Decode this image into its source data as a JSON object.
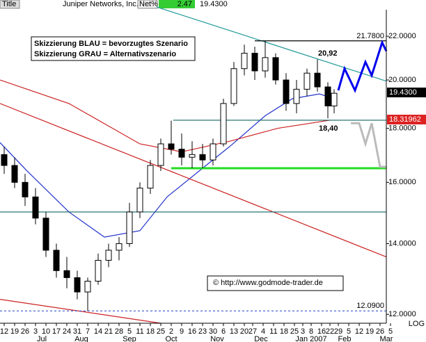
{
  "chart_data": {
    "type": "candlestick",
    "header": {
      "field": "Title",
      "name": "Juniper Networks, Inc.",
      "change_label": "Net%",
      "change": "2.47",
      "last": "19.4300"
    },
    "annotations": {
      "legend_blue": "Skizzierung BLAU = bevorzugtes Szenario",
      "legend_gray": "Skizzierung GRAU = Alternativszenario",
      "high_label": "20,92",
      "low_label": "18,40",
      "copyright": "© http://www.godmode-trader.de",
      "resistance_label": "21.7800",
      "min_label": "12.0900",
      "price_box": "19.4300",
      "ma_box": "18.31962",
      "scale_label": "LOG"
    },
    "log_scale": true,
    "xlim": [
      0,
      185
    ],
    "ylim": [
      11.77,
      23.45
    ],
    "yticks": [
      {
        "value": 22,
        "label": "22.0000"
      },
      {
        "value": 20,
        "label": "20.0000"
      },
      {
        "value": 18,
        "label": "18.0000"
      },
      {
        "value": 16,
        "label": "16.0000"
      },
      {
        "value": 14,
        "label": "14.0000"
      },
      {
        "value": 12,
        "label": "12.0000"
      }
    ],
    "xticks": [
      {
        "value": 2,
        "label": "12"
      },
      {
        "value": 7,
        "label": "19"
      },
      {
        "value": 12,
        "label": "26"
      },
      {
        "value": 17,
        "label": "3"
      },
      {
        "value": 22,
        "label": "10"
      },
      {
        "value": 27,
        "label": "17"
      },
      {
        "value": 32,
        "label": "24"
      },
      {
        "value": 37,
        "label": "31"
      },
      {
        "value": 42,
        "label": "7"
      },
      {
        "value": 47,
        "label": "14"
      },
      {
        "value": 52,
        "label": "21"
      },
      {
        "value": 57,
        "label": "28"
      },
      {
        "value": 62,
        "label": "5"
      },
      {
        "value": 67,
        "label": "11"
      },
      {
        "value": 72,
        "label": "18"
      },
      {
        "value": 77,
        "label": "25"
      },
      {
        "value": 82,
        "label": "2"
      },
      {
        "value": 87,
        "label": "9"
      },
      {
        "value": 92,
        "label": "16"
      },
      {
        "value": 97,
        "label": "23"
      },
      {
        "value": 102,
        "label": "30"
      },
      {
        "value": 107,
        "label": "6"
      },
      {
        "value": 112,
        "label": "13"
      },
      {
        "value": 117,
        "label": "20"
      },
      {
        "value": 121,
        "label": "27"
      },
      {
        "value": 126,
        "label": "4"
      },
      {
        "value": 131,
        "label": "11"
      },
      {
        "value": 136,
        "label": "18"
      },
      {
        "value": 141,
        "label": "25"
      },
      {
        "value": 145,
        "label": "3"
      },
      {
        "value": 149,
        "label": "8"
      },
      {
        "value": 154,
        "label": "16"
      },
      {
        "value": 158,
        "label": "22"
      },
      {
        "value": 162,
        "label": "29"
      },
      {
        "value": 167,
        "label": "5"
      },
      {
        "value": 172,
        "label": "12"
      },
      {
        "value": 177,
        "label": "19"
      },
      {
        "value": 182,
        "label": "26"
      },
      {
        "value": 187,
        "label": "5"
      }
    ],
    "months": [
      {
        "value": 20,
        "label": "Jul"
      },
      {
        "value": 39,
        "label": "Aug"
      },
      {
        "value": 62,
        "label": "Sep"
      },
      {
        "value": 82,
        "label": "Oct"
      },
      {
        "value": 104,
        "label": "Nov"
      },
      {
        "value": 125,
        "label": "Dec"
      },
      {
        "value": 149,
        "label": "Jan 2007"
      },
      {
        "value": 165,
        "label": "Feb"
      },
      {
        "value": 185,
        "label": "Mar"
      }
    ],
    "x": [
      2,
      7,
      12,
      17,
      22,
      27,
      32,
      37,
      42,
      47,
      52,
      57,
      62,
      67,
      72,
      77,
      82,
      87,
      92,
      97,
      102,
      107,
      112,
      117,
      122,
      127,
      132,
      137,
      142,
      147,
      152,
      157,
      160
    ],
    "open": [
      17.0,
      16.6,
      16.0,
      15.5,
      14.8,
      13.8,
      13.2,
      13.0,
      12.6,
      12.9,
      13.5,
      13.8,
      14.0,
      15.0,
      15.8,
      16.6,
      17.4,
      17.2,
      16.9,
      17.0,
      16.8,
      17.4,
      19.0,
      20.5,
      21.2,
      20.4,
      21.0,
      20.0,
      19.0,
      19.6,
      20.3,
      19.7,
      18.9
    ],
    "high": [
      17.3,
      16.9,
      16.3,
      15.8,
      15.0,
      14.0,
      13.6,
      13.2,
      13.0,
      13.7,
      14.0,
      14.2,
      15.3,
      16.0,
      16.8,
      17.6,
      18.3,
      17.8,
      17.5,
      17.4,
      17.6,
      19.2,
      20.8,
      21.6,
      21.5,
      21.78,
      21.2,
      20.3,
      20.0,
      20.5,
      20.92,
      19.9,
      19.6
    ],
    "low": [
      16.3,
      15.8,
      15.2,
      14.6,
      13.6,
      13.0,
      12.7,
      12.4,
      12.09,
      12.8,
      13.3,
      13.5,
      13.9,
      14.8,
      15.6,
      16.4,
      17.0,
      16.6,
      16.5,
      16.5,
      16.6,
      17.3,
      18.9,
      20.2,
      20.0,
      20.1,
      19.8,
      18.7,
      18.6,
      19.3,
      19.5,
      18.4,
      18.6
    ],
    "close": [
      16.6,
      16.0,
      15.5,
      14.8,
      13.8,
      13.2,
      13.0,
      12.6,
      12.9,
      13.5,
      13.8,
      14.0,
      15.0,
      15.8,
      16.6,
      17.4,
      17.2,
      16.9,
      17.0,
      16.8,
      17.4,
      19.0,
      20.5,
      21.2,
      20.4,
      21.0,
      20.0,
      19.0,
      19.6,
      20.3,
      19.7,
      18.9,
      19.43
    ],
    "overlays": [
      {
        "color": "#2233cc",
        "x": [
          0,
          13,
          33,
          50,
          67,
          80,
          97,
          110,
          127,
          140,
          153,
          160
        ],
        "values": [
          17.45,
          16.4,
          15.0,
          14.2,
          14.4,
          15.5,
          16.5,
          17.3,
          18.5,
          19.2,
          19.4,
          19.2
        ]
      },
      {
        "color": "#cc2222",
        "x": [
          0,
          33,
          67,
          87,
          110,
          133,
          158
        ],
        "values": [
          20.0,
          19.0,
          17.4,
          17.1,
          17.5,
          18.0,
          18.32
        ]
      },
      {
        "color": "#229999",
        "x": [
          75,
          185
        ],
        "values": [
          23.45,
          19.95
        ]
      },
      {
        "color": "#cc2222",
        "x": [
          0,
          185
        ],
        "values": [
          19.0,
          13.6
        ]
      },
      {
        "color": "#cc2222",
        "x": [
          0,
          77
        ],
        "values": [
          12.4,
          11.77
        ]
      },
      {
        "color": "#116666",
        "x": [
          83,
          185
        ],
        "values": [
          18.32,
          18.32
        ]
      },
      {
        "color": "#116666",
        "x": [
          0,
          185
        ],
        "values": [
          15.0,
          15.0
        ]
      },
      {
        "color": "#22dd22",
        "x": [
          82,
          185
        ],
        "values": [
          16.5,
          16.5
        ]
      },
      {
        "color": "#000000",
        "x": [
          122,
          185
        ],
        "values": [
          21.78,
          21.78
        ]
      },
      {
        "color": "#3355cc",
        "x": [
          0,
          185
        ],
        "values": [
          12.09,
          12.09
        ]
      },
      {
        "color": "#0000ee",
        "x": [
          162,
          165,
          170,
          175,
          178,
          183,
          185
        ],
        "values": [
          19.55,
          20.5,
          19.55,
          20.8,
          20.2,
          21.7,
          21.3
        ]
      },
      {
        "color": "#bbbbbb",
        "x": [
          168,
          172,
          175,
          178,
          182,
          185
        ],
        "values": [
          18.2,
          18.2,
          17.4,
          18.2,
          16.55,
          16.55
        ]
      }
    ]
  }
}
